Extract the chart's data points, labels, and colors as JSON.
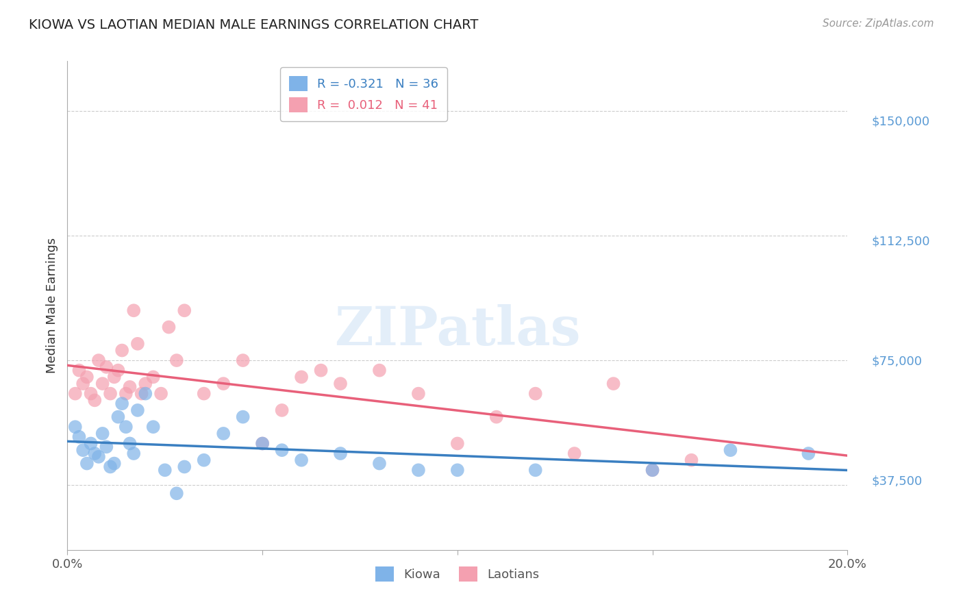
{
  "title": "KIOWA VS LAOTIAN MEDIAN MALE EARNINGS CORRELATION CHART",
  "source": "Source: ZipAtlas.com",
  "ylabel": "Median Male Earnings",
  "xlim": [
    0.0,
    0.2
  ],
  "ylim": [
    18000,
    165000
  ],
  "yticks": [
    37500,
    75000,
    112500,
    150000
  ],
  "ytick_labels": [
    "$37,500",
    "$75,000",
    "$112,500",
    "$150,000"
  ],
  "xticks": [
    0.0,
    0.05,
    0.1,
    0.15,
    0.2
  ],
  "xtick_labels": [
    "0.0%",
    "",
    "",
    "",
    "20.0%"
  ],
  "kiowa_R": -0.321,
  "kiowa_N": 36,
  "laotian_R": 0.012,
  "laotian_N": 41,
  "kiowa_color": "#7fb3e8",
  "laotian_color": "#f4a0b0",
  "kiowa_line_color": "#3a7fc1",
  "laotian_line_color": "#e8607a",
  "background_color": "#ffffff",
  "grid_color": "#cccccc",
  "title_color": "#222222",
  "ytick_color": "#5b9bd5",
  "kiowa_x": [
    0.002,
    0.003,
    0.004,
    0.005,
    0.006,
    0.007,
    0.008,
    0.009,
    0.01,
    0.011,
    0.012,
    0.013,
    0.014,
    0.015,
    0.016,
    0.017,
    0.018,
    0.02,
    0.022,
    0.025,
    0.028,
    0.03,
    0.035,
    0.04,
    0.045,
    0.05,
    0.055,
    0.06,
    0.07,
    0.08,
    0.09,
    0.1,
    0.12,
    0.15,
    0.17,
    0.19
  ],
  "kiowa_y": [
    55000,
    52000,
    48000,
    44000,
    50000,
    47000,
    46000,
    53000,
    49000,
    43000,
    44000,
    58000,
    62000,
    55000,
    50000,
    47000,
    60000,
    65000,
    55000,
    42000,
    35000,
    43000,
    45000,
    53000,
    58000,
    50000,
    48000,
    45000,
    47000,
    44000,
    42000,
    42000,
    42000,
    42000,
    48000,
    47000
  ],
  "laotian_x": [
    0.002,
    0.003,
    0.004,
    0.005,
    0.006,
    0.007,
    0.008,
    0.009,
    0.01,
    0.011,
    0.012,
    0.013,
    0.014,
    0.015,
    0.016,
    0.017,
    0.018,
    0.019,
    0.02,
    0.022,
    0.024,
    0.026,
    0.028,
    0.03,
    0.035,
    0.04,
    0.045,
    0.05,
    0.055,
    0.06,
    0.065,
    0.07,
    0.08,
    0.09,
    0.1,
    0.11,
    0.12,
    0.13,
    0.14,
    0.15,
    0.16
  ],
  "laotian_y": [
    65000,
    72000,
    68000,
    70000,
    65000,
    63000,
    75000,
    68000,
    73000,
    65000,
    70000,
    72000,
    78000,
    65000,
    67000,
    90000,
    80000,
    65000,
    68000,
    70000,
    65000,
    85000,
    75000,
    90000,
    65000,
    68000,
    75000,
    50000,
    60000,
    70000,
    72000,
    68000,
    72000,
    65000,
    50000,
    58000,
    65000,
    47000,
    68000,
    42000,
    45000
  ]
}
